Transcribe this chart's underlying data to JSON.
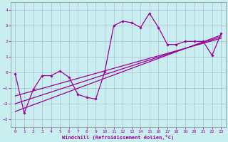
{
  "xlabel": "Windchill (Refroidissement éolien,°C)",
  "xlim": [
    -0.5,
    23.5
  ],
  "ylim": [
    -3.5,
    4.5
  ],
  "yticks": [
    -3,
    -2,
    -1,
    0,
    1,
    2,
    3,
    4
  ],
  "xticks": [
    0,
    1,
    2,
    3,
    4,
    5,
    6,
    7,
    8,
    9,
    10,
    11,
    12,
    13,
    14,
    15,
    16,
    17,
    18,
    19,
    20,
    21,
    22,
    23
  ],
  "bg_color": "#c8eef0",
  "grid_color": "#b0b8d8",
  "line_color": "#990099",
  "line1_x": [
    0,
    1,
    2,
    3,
    4,
    5,
    6,
    7,
    8,
    9,
    10,
    11,
    12,
    13,
    14,
    15,
    16,
    17,
    18,
    19,
    20,
    21,
    22,
    23
  ],
  "line1_y": [
    -0.1,
    -2.6,
    -1.1,
    -0.2,
    -0.2,
    0.1,
    -0.3,
    -1.4,
    -1.6,
    -1.7,
    0.05,
    3.0,
    3.3,
    3.2,
    2.9,
    3.8,
    2.9,
    1.8,
    1.8,
    2.0,
    2.0,
    2.0,
    1.1,
    2.5
  ],
  "line2_x": [
    0,
    23
  ],
  "line2_y": [
    -2.5,
    2.4
  ],
  "line3_x": [
    0,
    23
  ],
  "line3_y": [
    -2.0,
    2.3
  ],
  "line4_x": [
    0,
    23
  ],
  "line4_y": [
    -1.5,
    2.2
  ]
}
